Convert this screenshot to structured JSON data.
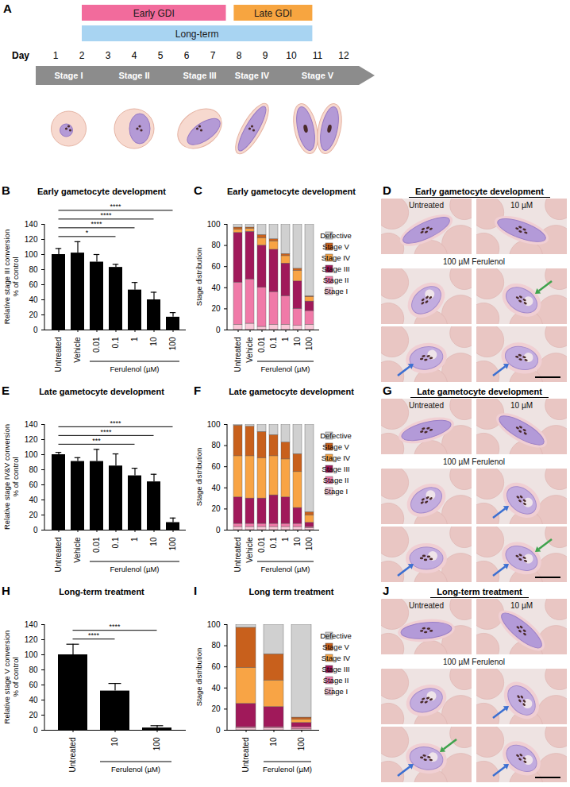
{
  "diagram": {
    "panel": "A",
    "bars": [
      {
        "label": "Early GDI",
        "start": 2,
        "end": 7.5,
        "color": "#f26b9c"
      },
      {
        "label": "Late GDI",
        "start": 7.8,
        "end": 10.8,
        "color": "#f7a540"
      },
      {
        "label": "Long-term",
        "start": 2,
        "end": 10.8,
        "color": "#a8d4f2"
      }
    ],
    "day_label": "Day",
    "days": [
      1,
      2,
      3,
      4,
      5,
      6,
      7,
      8,
      9,
      10,
      11,
      12
    ],
    "stages": [
      {
        "label": "Stage I",
        "start": 1,
        "end": 2
      },
      {
        "label": "Stage II",
        "start": 3,
        "end": 5
      },
      {
        "label": "Stage III",
        "start": 6,
        "end": 7
      },
      {
        "label": "Stage IV",
        "start": 8,
        "end": 9
      },
      {
        "label": "Stage V",
        "start": 10,
        "end": 12
      }
    ]
  },
  "chart_data": [
    {
      "panel": "B",
      "type": "bar",
      "title": "Early gametocyte development",
      "y_label": "Relative stage III conversion\n% of control",
      "categories": [
        "Untreated",
        "Vehicle",
        "0.01",
        "0.1",
        "1",
        "10",
        "100"
      ],
      "values": [
        100,
        102,
        90,
        83,
        53,
        40,
        17
      ],
      "errors": [
        8,
        15,
        10,
        4,
        10,
        10,
        6
      ],
      "color": "#000000",
      "ylim": [
        0,
        140
      ],
      "yticks": [
        0,
        20,
        40,
        60,
        80,
        100,
        120,
        140
      ],
      "group": {
        "label": "Ferulenol (µM)",
        "categories": [
          "0.01",
          "0.1",
          "1",
          "10",
          "100"
        ]
      },
      "significance": [
        {
          "from": "Untreated",
          "to": "0.1",
          "label": "*"
        },
        {
          "from": "Untreated",
          "to": "1",
          "label": "****"
        },
        {
          "from": "Untreated",
          "to": "10",
          "label": "****"
        },
        {
          "from": "Untreated",
          "to": "100",
          "label": "****"
        }
      ]
    },
    {
      "panel": "C",
      "type": "bar",
      "stacked": true,
      "title": "Early gametocyte development",
      "y_label": "Stage distribution",
      "categories": [
        "Untreated",
        "Vehicle",
        "0.01",
        "0.1",
        "1",
        "10",
        "100"
      ],
      "series": [
        {
          "name": "Stage I",
          "color": "#f9c9d8",
          "values": [
            5,
            6,
            3,
            5,
            5,
            4,
            5
          ]
        },
        {
          "name": "Stage II",
          "color": "#f07aa8",
          "values": [
            40,
            42,
            37,
            31,
            27,
            16,
            13
          ]
        },
        {
          "name": "Stage III",
          "color": "#a0195a",
          "values": [
            47,
            45,
            40,
            40,
            31,
            26,
            9
          ]
        },
        {
          "name": "Stage IV",
          "color": "#f8a445",
          "values": [
            3,
            3,
            7,
            8,
            7,
            10,
            4
          ]
        },
        {
          "name": "Stage V",
          "color": "#c8601c",
          "values": [
            2,
            1,
            3,
            2,
            2,
            2,
            1
          ]
        },
        {
          "name": "Defective",
          "color": "#d0d0d0",
          "values": [
            3,
            3,
            10,
            14,
            28,
            42,
            68
          ]
        }
      ],
      "ylim": [
        0,
        100
      ],
      "yticks": [
        0,
        20,
        40,
        60,
        80,
        100
      ],
      "legend": "right",
      "group": {
        "label": "Ferulenol (µM)",
        "categories": [
          "0.01",
          "0.1",
          "1",
          "10",
          "100"
        ]
      }
    },
    {
      "panel": "E",
      "type": "bar",
      "title": "Late gametocyte development",
      "y_label": "Relative stage IV&V conversion\n% of control",
      "categories": [
        "Untreated",
        "Vehicle",
        "0.01",
        "0.1",
        "1",
        "10",
        "100"
      ],
      "values": [
        100,
        91,
        91,
        85,
        72,
        64,
        10
      ],
      "errors": [
        3,
        5,
        16,
        16,
        10,
        10,
        6
      ],
      "color": "#000000",
      "ylim": [
        0,
        140
      ],
      "yticks": [
        0,
        20,
        40,
        60,
        80,
        100,
        120,
        140
      ],
      "group": {
        "label": "Ferulenol (µM)",
        "categories": [
          "0.01",
          "0.1",
          "1",
          "10",
          "100"
        ]
      },
      "significance": [
        {
          "from": "Untreated",
          "to": "1",
          "label": "***"
        },
        {
          "from": "Untreated",
          "to": "10",
          "label": "****"
        },
        {
          "from": "Untreated",
          "to": "100",
          "label": "****"
        }
      ]
    },
    {
      "panel": "F",
      "type": "bar",
      "stacked": true,
      "title": "Late gametocyte development",
      "y_label": "Stage distribution",
      "categories": [
        "Untreated",
        "Vehicle",
        "0.01",
        "0.1",
        "1",
        "10",
        "100"
      ],
      "series": [
        {
          "name": "Stage I",
          "color": "#f9c9d8",
          "values": [
            3,
            3,
            3,
            3,
            3,
            3,
            2
          ]
        },
        {
          "name": "Stage II",
          "color": "#f07aa8",
          "values": [
            3,
            3,
            3,
            3,
            3,
            3,
            1
          ]
        },
        {
          "name": "Stage III",
          "color": "#a0195a",
          "values": [
            25,
            24,
            24,
            27,
            25,
            15,
            4
          ]
        },
        {
          "name": "Stage IV",
          "color": "#f8a445",
          "values": [
            39,
            40,
            38,
            37,
            36,
            34,
            7
          ]
        },
        {
          "name": "Stage V",
          "color": "#c8601c",
          "values": [
            29,
            28,
            25,
            20,
            16,
            17,
            3
          ]
        },
        {
          "name": "Defective",
          "color": "#d0d0d0",
          "values": [
            1,
            2,
            7,
            10,
            17,
            28,
            83
          ]
        }
      ],
      "ylim": [
        0,
        100
      ],
      "yticks": [
        0,
        20,
        40,
        60,
        80,
        100
      ],
      "legend": "right",
      "group": {
        "label": "Ferulenol (µM)",
        "categories": [
          "0.01",
          "0.1",
          "1",
          "10",
          "100"
        ]
      }
    },
    {
      "panel": "H",
      "type": "bar",
      "title": "Long-term treatment",
      "y_label": "Relative stage V conversion\n% of control",
      "categories": [
        "Untreated",
        "10",
        "100"
      ],
      "values": [
        100,
        52,
        3
      ],
      "errors": [
        14,
        10,
        3
      ],
      "color": "#000000",
      "ylim": [
        0,
        140
      ],
      "yticks": [
        0,
        20,
        40,
        60,
        80,
        100,
        120,
        140
      ],
      "group": {
        "label": "Ferulenol (µM)",
        "categories": [
          "10",
          "100"
        ]
      },
      "significance": [
        {
          "from": "Untreated",
          "to": "10",
          "label": "****"
        },
        {
          "from": "Untreated",
          "to": "100",
          "label": "****"
        }
      ]
    },
    {
      "panel": "I",
      "type": "bar",
      "stacked": true,
      "title": "Long term treatment",
      "y_label": "Stage distribution",
      "categories": [
        "Untreated",
        "10",
        "100"
      ],
      "series": [
        {
          "name": "Stage I",
          "color": "#f9c9d8",
          "values": [
            2,
            2,
            1
          ]
        },
        {
          "name": "Stage II",
          "color": "#f07aa8",
          "values": [
            1,
            1,
            2
          ]
        },
        {
          "name": "Stage III",
          "color": "#a0195a",
          "values": [
            22,
            19,
            4
          ]
        },
        {
          "name": "Stage IV",
          "color": "#f8a445",
          "values": [
            34,
            25,
            3
          ]
        },
        {
          "name": "Stage V",
          "color": "#c8601c",
          "values": [
            38,
            25,
            2
          ]
        },
        {
          "name": "Defective",
          "color": "#d0d0d0",
          "values": [
            3,
            28,
            88
          ]
        }
      ],
      "ylim": [
        0,
        100
      ],
      "yticks": [
        0,
        20,
        40,
        60,
        80,
        100
      ],
      "legend": "right",
      "group": {
        "label": "Ferulenol (µM)",
        "categories": [
          "10",
          "100"
        ]
      }
    }
  ],
  "micrographs": [
    {
      "panel": "D",
      "title": "Early gametocyte development",
      "labels": [
        "Untreated",
        "10 µM",
        "100 µM Ferulenol"
      ]
    },
    {
      "panel": "G",
      "title": "Late gametocyte development",
      "labels": [
        "Untreated",
        "10 µM",
        "100 µM Ferulenol"
      ]
    },
    {
      "panel": "J",
      "title": "Long-term treatment",
      "labels": [
        "Untreated",
        "10 µM",
        "100 µM Ferulenol"
      ]
    }
  ]
}
